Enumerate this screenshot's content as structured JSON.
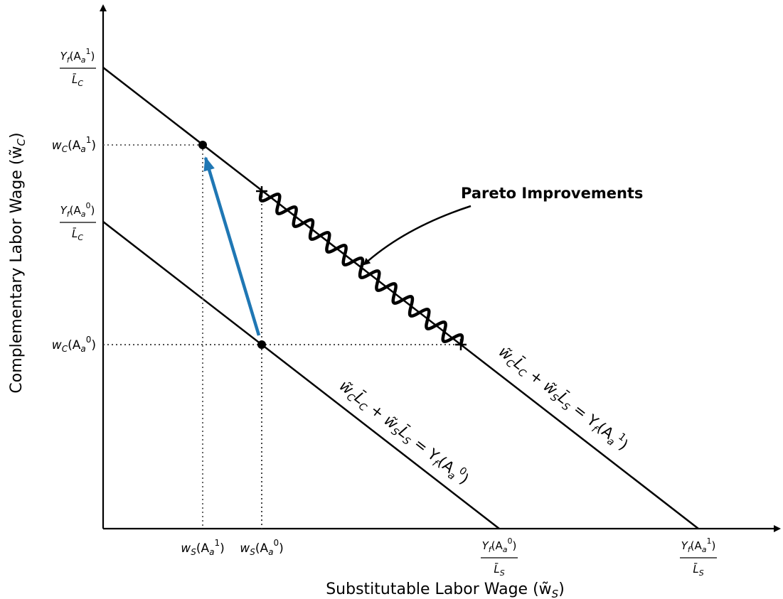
{
  "diagram": {
    "xlabel": "Substitutable Labor Wage (w̃",
    "xlabel_sub": "S",
    "xlabel_end": ")",
    "ylabel": "Complementary Labor Wage (w̃",
    "ylabel_sub": "C",
    "ylabel_end": ")",
    "pareto_label": "Pareto Improvements",
    "y_ticks": {
      "y_int_1": {
        "num": "Y",
        "num_sub": "f",
        "num_arg": "(A",
        "num_arg_sub": "a",
        "num_sup": "1",
        "den": "L̄",
        "den_sub": "C"
      },
      "wc_1": {
        "main": "w",
        "sub": "C",
        "arg": "(A",
        "arg_sub": "a",
        "sup": "1"
      },
      "y_int_0": {
        "num": "Y",
        "num_sub": "f",
        "num_arg": "(A",
        "num_arg_sub": "a",
        "num_sup": "0",
        "den": "L̄",
        "den_sub": "C"
      },
      "wc_0": {
        "main": "w",
        "sub": "C",
        "arg": "(A",
        "arg_sub": "a",
        "sup": "0"
      }
    },
    "x_ticks": {
      "ws_1": {
        "main": "w",
        "sub": "S",
        "arg": "(A",
        "arg_sub": "a",
        "sup": "1"
      },
      "ws_0": {
        "main": "w",
        "sub": "S",
        "arg": "(A",
        "arg_sub": "a",
        "sup": "0"
      },
      "x_int_0": {
        "num": "Y",
        "num_sub": "f",
        "num_arg": "(A",
        "num_arg_sub": "a",
        "num_sup": "0",
        "den": "L̄",
        "den_sub": "S"
      },
      "x_int_1": {
        "num": "Y",
        "num_sub": "f",
        "num_arg": "(A",
        "num_arg_sub": "a",
        "num_sup": "1",
        "den": "L̄",
        "den_sub": "S"
      }
    },
    "eq_0": {
      "a": "w̃",
      "a_sub": "C",
      "b": "L̄",
      "b_sub": "C",
      "plus": " + ",
      "c": "w̃",
      "c_sub": "S",
      "d": "L̄",
      "d_sub": "S",
      "eq": " = Y",
      "eq_sub": "f",
      "arg": "(A",
      "arg_sub": "a",
      "arg_sup": "0",
      "end": ")"
    },
    "eq_1": {
      "a": "w̃",
      "a_sub": "C",
      "b": "L̄",
      "b_sub": "C",
      "plus": " + ",
      "c": "w̃",
      "c_sub": "S",
      "d": "L̄",
      "d_sub": "S",
      "eq": " = Y",
      "eq_sub": "f",
      "arg": "(A",
      "arg_sub": "a",
      "arg_sup": "1",
      "end": ")"
    },
    "colors": {
      "arrow": "#1f77b4",
      "lines": "#000000",
      "guides": "#555555"
    }
  }
}
